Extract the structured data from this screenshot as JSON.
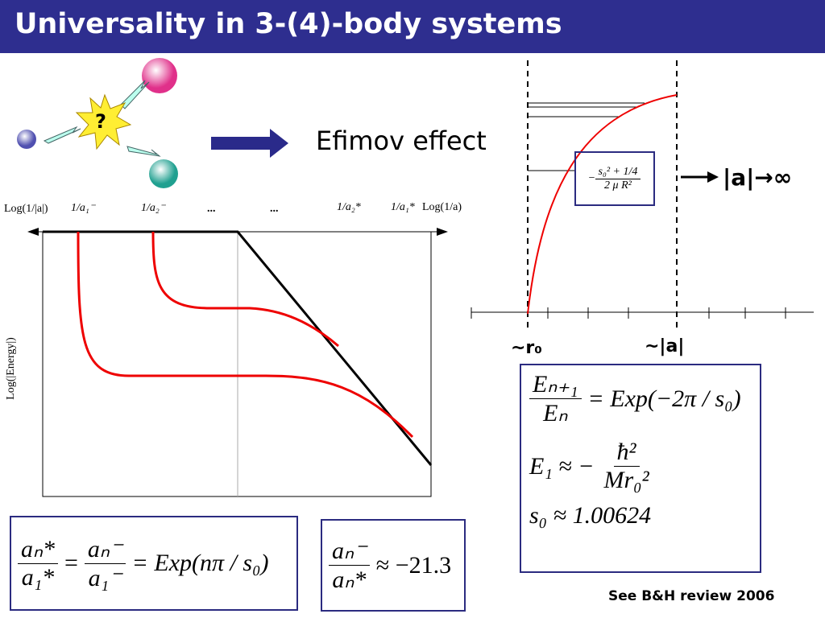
{
  "header": {
    "title": "Universality in 3-(4)-body systems"
  },
  "illustration": {
    "question_mark": "?",
    "caption": "Efimov effect"
  },
  "energy_plot": {
    "x_labels": [
      "Log(1/|a|)",
      "1/a₁⁻",
      "1/a₂⁻",
      "...",
      "...",
      "1/a₂*",
      "1/a₁*",
      "Log(1/a)"
    ],
    "y_label": "Log(|Energy|)"
  },
  "potential_plot": {
    "inset": {
      "prefix": "−",
      "numerator": "s₀² + 1/4",
      "denominator": "2 μ R²"
    },
    "limit": "|a|→∞",
    "x_labels": [
      "~r₀",
      "~|a|"
    ]
  },
  "formulas": {
    "ratio": {
      "num1": "aₙ*",
      "den1": "a₁*",
      "eq1": "=",
      "num2": "aₙ⁻",
      "den2": "a₁⁻",
      "rhs": "= Exp(nπ / s₀)"
    },
    "scale": {
      "num": "aₙ⁻",
      "den": "aₙ*",
      "rhs": "≈ −21.3"
    },
    "energy": {
      "num": "Eₙ₊₁",
      "den": "Eₙ",
      "rhs": "= Exp(−2π / s₀)",
      "e1_lhs": "E₁ ≈ −",
      "e1_num": "ħ²",
      "e1_den": "Mr₀²",
      "s0": "s₀ ≈ 1.00624"
    }
  },
  "footer": {
    "reference": "See B&H review 2006"
  }
}
